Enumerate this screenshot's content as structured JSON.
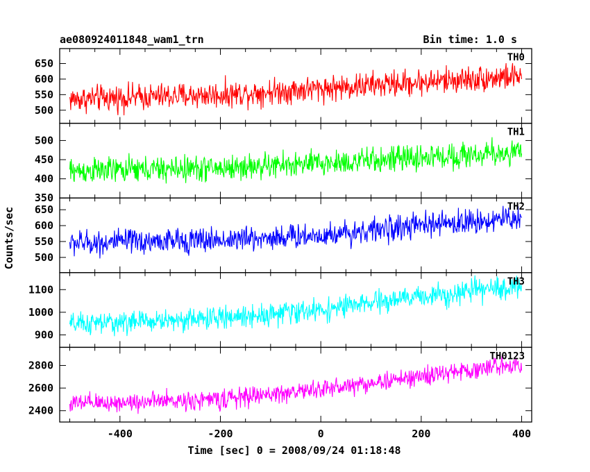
{
  "chart_data": {
    "type": "line",
    "title": "ae080924011848_wam1_trn",
    "subtitle": "Bin time: 1.0 s",
    "xlabel": "Time [sec] 0 = 2008/09/24 01:18:48",
    "ylabel": "Counts/sec",
    "xlim": [
      -520,
      420
    ],
    "x_ticks": [
      -400,
      -200,
      0,
      200,
      400
    ],
    "x": {
      "start": -500,
      "end": 400,
      "step": 1
    },
    "series": [
      {
        "name": "TH0",
        "color": "#ff0000",
        "ylim": [
          458,
          698
        ],
        "y_ticks": [
          500,
          550,
          600,
          650
        ],
        "trend": [
          [
            -500,
            535
          ],
          [
            -200,
            550
          ],
          [
            0,
            570
          ],
          [
            200,
            590
          ],
          [
            400,
            610
          ]
        ],
        "noise": 30
      },
      {
        "name": "TH1",
        "color": "#00ff00",
        "ylim": [
          350,
          545
        ],
        "y_ticks": [
          350,
          400,
          450,
          500
        ],
        "trend": [
          [
            -500,
            420
          ],
          [
            -200,
            428
          ],
          [
            0,
            440
          ],
          [
            200,
            455
          ],
          [
            400,
            470
          ]
        ],
        "noise": 24
      },
      {
        "name": "TH2",
        "color": "#0000ff",
        "ylim": [
          452,
          687
        ],
        "y_ticks": [
          500,
          550,
          600,
          650
        ],
        "trend": [
          [
            -500,
            545
          ],
          [
            -200,
            555
          ],
          [
            0,
            570
          ],
          [
            200,
            600
          ],
          [
            400,
            625
          ]
        ],
        "noise": 28
      },
      {
        "name": "TH3",
        "color": "#00ffff",
        "ylim": [
          845,
          1175
        ],
        "y_ticks": [
          900,
          1000,
          1100
        ],
        "trend": [
          [
            -500,
            945
          ],
          [
            -200,
            975
          ],
          [
            0,
            1010
          ],
          [
            200,
            1070
          ],
          [
            400,
            1115
          ]
        ],
        "noise": 35
      },
      {
        "name": "TH0123",
        "color": "#ff00ff",
        "ylim": [
          2300,
          2960
        ],
        "y_ticks": [
          2400,
          2600,
          2800
        ],
        "trend": [
          [
            -500,
            2460
          ],
          [
            -200,
            2500
          ],
          [
            0,
            2590
          ],
          [
            200,
            2700
          ],
          [
            400,
            2820
          ]
        ],
        "noise": 60
      }
    ],
    "grid": false,
    "legend": "inside-top-right per panel"
  }
}
